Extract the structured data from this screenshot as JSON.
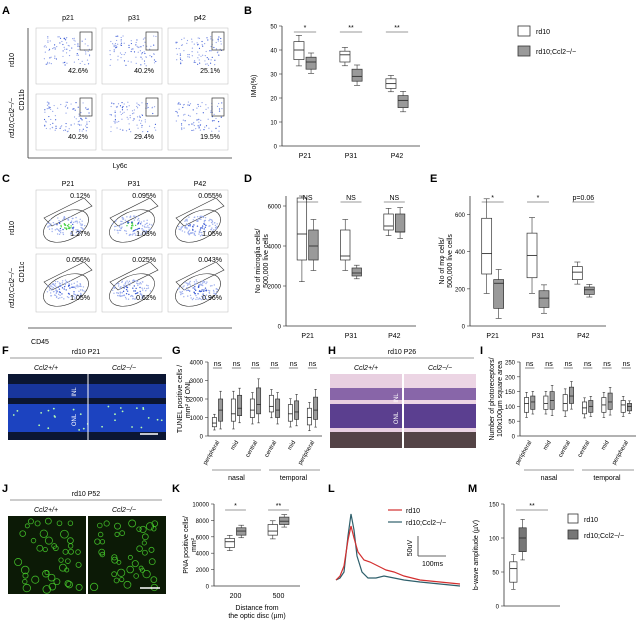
{
  "panels": {
    "A": {
      "letter": "A",
      "cols": [
        "p21",
        "p31",
        "p42"
      ],
      "rows": [
        "rd10",
        "rd10;Ccl2−/−"
      ],
      "xaxis": "Ly6c",
      "yaxis": "CD11b",
      "pct": [
        [
          "42.6%",
          "40.2%",
          "25.1%"
        ],
        [
          "40.2%",
          "29.4%",
          "19.5%"
        ]
      ]
    },
    "B": {
      "letter": "B",
      "ylabel": "IMo(%)",
      "yticks": [
        "0",
        "10",
        "20",
        "30",
        "40",
        "50"
      ],
      "xticks": [
        "P21",
        "P31",
        "P42"
      ],
      "sig": [
        "*",
        "**",
        "**"
      ],
      "legend": [
        "rd10",
        "rd10;Ccl2−/−"
      ]
    },
    "C": {
      "letter": "C",
      "cols": [
        "P21",
        "P31",
        "P42"
      ],
      "rows": [
        "rd10",
        "rd10;Ccl2−/−"
      ],
      "xaxis": "CD45",
      "yaxis": "CD11c",
      "top": [
        [
          "0.12%",
          "0.095%",
          "0.055%"
        ],
        [
          "0.056%",
          "0.025%",
          "0.043%"
        ]
      ],
      "bot": [
        [
          "1.27%",
          "1.03%",
          "1.05%"
        ],
        [
          "1.05%",
          "0.62%",
          "0.96%"
        ]
      ]
    },
    "D": {
      "letter": "D",
      "ylabel": "No of microglia cells/ 500,000 live cells",
      "yticks": [
        "0",
        "2000",
        "4000",
        "6000"
      ],
      "xticks": [
        "P21",
        "P31",
        "P42"
      ],
      "sig": [
        "NS",
        "NS",
        "NS"
      ]
    },
    "E": {
      "letter": "E",
      "ylabel": "No of mφ cells/ 500,000 live cells",
      "yticks": [
        "0",
        "200",
        "400",
        "600"
      ],
      "xticks": [
        "P21",
        "P31",
        "P42"
      ],
      "sig": [
        "*",
        "*",
        "p=0.06"
      ]
    },
    "F": {
      "letter": "F",
      "title": "rd10 P21",
      "left": "Ccl2+/+",
      "right": "Ccl2−/−",
      "inl": "INL",
      "onl": "ONL"
    },
    "G": {
      "letter": "G",
      "ylabel": "TUNEL positive cells / mm² of ONL",
      "yticks": [
        "0",
        "1000",
        "2000",
        "3000",
        "4000"
      ],
      "cats": [
        "peripheral",
        "mid",
        "central",
        "central",
        "mid",
        "peripheral"
      ],
      "groups": [
        "nasal",
        "temporal"
      ],
      "sig": [
        "ns",
        "ns",
        "ns",
        "ns",
        "ns",
        "ns"
      ]
    },
    "H": {
      "letter": "H",
      "title": "rd10 P26",
      "left": "Ccl2+/+",
      "right": "Ccl2−/−",
      "inl": "INL",
      "onl": "ONL"
    },
    "I": {
      "letter": "I",
      "ylabel": "Number of photoreceptors/ 100x100µm square area",
      "yticks": [
        "0",
        "50",
        "100",
        "150",
        "200",
        "250"
      ],
      "cats": [
        "peripheral",
        "mid",
        "central",
        "central",
        "mid",
        "peripheral"
      ],
      "groups": [
        "nasal",
        "temporal"
      ],
      "sig": [
        "ns",
        "ns",
        "ns",
        "ns",
        "ns",
        "ns"
      ]
    },
    "J": {
      "letter": "J",
      "title": "rd10 P52",
      "left": "Ccl2+/+",
      "right": "Ccl2−/−"
    },
    "K": {
      "letter": "K",
      "ylabel": "PNA positive cells/ mm²",
      "yticks": [
        "0",
        "2000",
        "4000",
        "6000",
        "8000",
        "10000"
      ],
      "xticks": [
        "200",
        "500"
      ],
      "xlabel": "Distance from the optic disc (µm)",
      "sig": [
        "*",
        "**"
      ]
    },
    "L": {
      "letter": "L",
      "legend": [
        "rd10",
        "rd10;Ccl2−/−"
      ],
      "scale_v": "50uV",
      "scale_t": "100ms"
    },
    "M": {
      "letter": "M",
      "ylabel": "b-wave amplitude (µV)",
      "yticks": [
        "0",
        "50",
        "100",
        "150"
      ],
      "sig": "**",
      "legend": [
        "rd10",
        "rd10;Ccl2−/−"
      ]
    }
  },
  "colors": {
    "rd10": "#ffffff",
    "ko": "#9a9a9a",
    "erg_rd10": "#d32f2f",
    "erg_ko": "#2e5f6b",
    "fluor_bg": "#0b1633",
    "nucleus": "#1e46c8",
    "green": "#49d22e"
  },
  "chart_data": [
    {
      "type": "box",
      "panel": "B",
      "categories": [
        "P21",
        "P31",
        "P42"
      ],
      "ylim": [
        0,
        50
      ],
      "series": [
        {
          "name": "rd10",
          "box": [
            [
              36,
              40,
              43.5
            ],
            [
              35,
              38,
              39.5
            ],
            [
              24,
              26,
              28
            ]
          ]
        },
        {
          "name": "rd10;Ccl2−/−",
          "box": [
            [
              32,
              35,
              37
            ],
            [
              27,
              29,
              32
            ],
            [
              16,
              19,
              21
            ]
          ]
        }
      ]
    },
    {
      "type": "box",
      "panel": "D",
      "categories": [
        "P21",
        "P31",
        "P42"
      ],
      "ylim": [
        0,
        6500
      ],
      "series": [
        {
          "name": "rd10",
          "box": [
            [
              3300,
              4600,
              6400
            ],
            [
              3300,
              3500,
              4800
            ],
            [
              4800,
              5000,
              5600
            ]
          ]
        },
        {
          "name": "rd10;Ccl2−/−",
          "box": [
            [
              3300,
              4000,
              4800
            ],
            [
              2500,
              2650,
              2900
            ],
            [
              4700,
              4700,
              5600
            ]
          ]
        }
      ]
    },
    {
      "type": "box",
      "panel": "E",
      "categories": [
        "P21",
        "P31",
        "P42"
      ],
      "ylim": [
        0,
        700
      ],
      "series": [
        {
          "name": "rd10",
          "box": [
            [
              280,
              390,
              580
            ],
            [
              260,
              380,
              500
            ],
            [
              250,
              290,
              320
            ]
          ]
        },
        {
          "name": "rd10;Ccl2−/−",
          "box": [
            [
              95,
              230,
              250
            ],
            [
              100,
              150,
              190
            ],
            [
              170,
              195,
              210
            ]
          ]
        }
      ]
    },
    {
      "type": "box",
      "panel": "G",
      "categories": [
        "nasal peripheral",
        "nasal mid",
        "nasal central",
        "temporal central",
        "temporal mid",
        "temporal peripheral"
      ],
      "ylim": [
        0,
        4000
      ],
      "series": [
        {
          "name": "rd10",
          "box": [
            [
              500,
              700,
              1000
            ],
            [
              800,
              1200,
              2000
            ],
            [
              1000,
              1400,
              2000
            ],
            [
              1300,
              1600,
              2200
            ],
            [
              800,
              1200,
              1700
            ],
            [
              600,
              1000,
              1500
            ]
          ]
        },
        {
          "name": "rd10;Ccl2−/−",
          "box": [
            [
              800,
              1400,
              2000
            ],
            [
              1100,
              1500,
              2200
            ],
            [
              1200,
              1700,
              2600
            ],
            [
              1000,
              1400,
              2000
            ],
            [
              900,
              1300,
              1900
            ],
            [
              900,
              1400,
              2100
            ]
          ]
        }
      ]
    },
    {
      "type": "box",
      "panel": "I",
      "categories": [
        "nasal peripheral",
        "nasal mid",
        "nasal central",
        "temporal central",
        "temporal mid",
        "temporal peripheral"
      ],
      "ylim": [
        0,
        250
      ],
      "series": [
        {
          "name": "rd10",
          "box": [
            [
              80,
              110,
              130
            ],
            [
              90,
              110,
              135
            ],
            [
              85,
              110,
              140
            ],
            [
              75,
              95,
              115
            ],
            [
              80,
              105,
              130
            ],
            [
              80,
              105,
              120
            ]
          ]
        },
        {
          "name": "rd10;Ccl2−/−",
          "box": [
            [
              90,
              115,
              135
            ],
            [
              90,
              120,
              150
            ],
            [
              110,
              135,
              165
            ],
            [
              80,
              100,
              120
            ],
            [
              90,
              115,
              145
            ],
            [
              85,
              100,
              110
            ]
          ]
        }
      ]
    },
    {
      "type": "box",
      "panel": "K",
      "categories": [
        "200",
        "500"
      ],
      "ylim": [
        0,
        10000
      ],
      "series": [
        {
          "name": "rd10",
          "box": [
            [
              4700,
              5400,
              5800
            ],
            [
              6200,
              6700,
              7500
            ]
          ]
        },
        {
          "name": "rd10;Ccl2−/−",
          "box": [
            [
              6200,
              6700,
              7100
            ],
            [
              7500,
              7900,
              8400
            ]
          ]
        }
      ]
    },
    {
      "type": "box",
      "panel": "M",
      "categories": [
        "rd10",
        "rd10;Ccl2−/−"
      ],
      "ylim": [
        0,
        150
      ],
      "series": [
        {
          "name": "rd10",
          "box": [
            [
              35,
              55,
              65
            ]
          ]
        },
        {
          "name": "rd10;Ccl2−/−",
          "box": [
            [
              80,
              100,
              115
            ]
          ]
        }
      ]
    }
  ]
}
